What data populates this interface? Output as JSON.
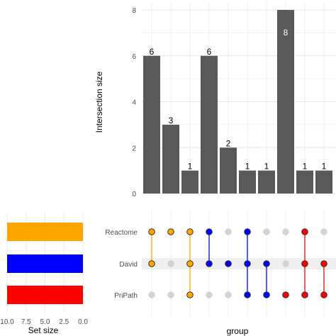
{
  "chart_data": {
    "type": "upset",
    "intersection_plot": {
      "ylabel": "Intersection size",
      "ylim": [
        0,
        8
      ],
      "yticks": [
        0,
        2,
        4,
        6,
        8
      ],
      "values": [
        6,
        3,
        1,
        6,
        2,
        1,
        1,
        8,
        1,
        1
      ],
      "bar_color": "#595959"
    },
    "matrix": {
      "xlabel": "group",
      "sets": [
        "Reactome",
        "David",
        "PriPath"
      ],
      "set_colors": {
        "Reactome": "#FFA500",
        "David": "#0000FF",
        "PriPath": "#FF0000"
      },
      "inactive_color": "#D3D3D3",
      "columns": [
        {
          "members": [
            "Reactome",
            "David"
          ],
          "color": "#FFA500"
        },
        {
          "members": [
            "Reactome"
          ],
          "color": "#FFA500"
        },
        {
          "members": [
            "Reactome",
            "David",
            "PriPath"
          ],
          "color": "#FFA500"
        },
        {
          "members": [
            "Reactome",
            "David"
          ],
          "color": "#0000FF"
        },
        {
          "members": [
            "David"
          ],
          "color": "#0000FF"
        },
        {
          "members": [
            "Reactome",
            "David",
            "PriPath"
          ],
          "color": "#0000FF"
        },
        {
          "members": [
            "David",
            "PriPath"
          ],
          "color": "#0000FF"
        },
        {
          "members": [
            "PriPath"
          ],
          "color": "#FF0000"
        },
        {
          "members": [
            "Reactome",
            "David",
            "PriPath"
          ],
          "color": "#FF0000"
        },
        {
          "members": [
            "David",
            "PriPath"
          ],
          "color": "#FF0000"
        }
      ]
    },
    "set_size_plot": {
      "xlabel": "Set size",
      "xticks": [
        "10.0",
        "7.5",
        "5.0",
        "2.5",
        "0.0"
      ],
      "xlim": [
        0,
        10
      ],
      "bars": [
        {
          "set": "Reactome",
          "value": 10,
          "color": "#FFA500"
        },
        {
          "set": "David",
          "value": 10,
          "color": "#0000FF"
        },
        {
          "set": "PriPath",
          "value": 10,
          "color": "#FF0000"
        }
      ]
    }
  }
}
